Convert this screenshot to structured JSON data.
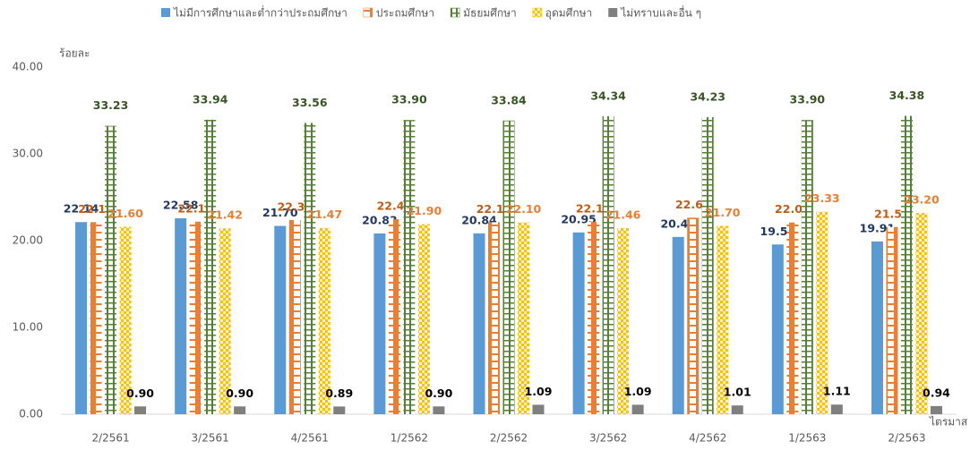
{
  "chart_data": {
    "type": "bar",
    "x_label": "ไตรมาส",
    "y_label": "ร้อยละ",
    "categories": [
      "2/2561",
      "3/2561",
      "4/2561",
      "1/2562",
      "2/2562",
      "3/2562",
      "4/2562",
      "1/2563",
      "2/2563"
    ],
    "ylim": [
      0,
      40
    ],
    "yticks": [
      {
        "value": 0,
        "label": "0.00"
      },
      {
        "value": 10,
        "label": "10.00"
      },
      {
        "value": 20,
        "label": "20.00"
      },
      {
        "value": 30,
        "label": "30.00"
      },
      {
        "value": 40,
        "label": "40.00"
      }
    ],
    "grid": false,
    "legend": "top",
    "series": [
      {
        "name": "ไม่มีการศึกษาและต่ำกว่าประถมศึกษา",
        "color": "#5b9bd5",
        "label_color": "#1f3864",
        "values": [
          22.14,
          22.58,
          21.7,
          20.83,
          20.84,
          20.95,
          20.43,
          19.56,
          19.91
        ],
        "value_labels": [
          "22.14",
          "22.58",
          "21.70",
          "20.83",
          "20.84",
          "20.95",
          "20.43",
          "19.56",
          "19.91"
        ]
      },
      {
        "name": "ประถมศึกษา",
        "color": "#ed7d31",
        "label_color": "#c55a11",
        "values": [
          22.13,
          22.19,
          22.38,
          22.47,
          22.13,
          22.16,
          22.64,
          22.09,
          21.57
        ],
        "value_labels": [
          "22.13",
          "22.19",
          "22.38",
          "22.47",
          "22.13",
          "22.16",
          "22.64",
          "22.09",
          "21.57"
        ]
      },
      {
        "name": "มัธยมศึกษา",
        "color": "#548235",
        "label_color": "#375623",
        "values": [
          33.23,
          33.94,
          33.56,
          33.9,
          33.84,
          34.34,
          34.23,
          33.9,
          34.38
        ],
        "value_labels": [
          "33.23",
          "33.94",
          "33.56",
          "33.90",
          "33.84",
          "34.34",
          "34.23",
          "33.90",
          "34.38"
        ]
      },
      {
        "name": "อุดมศึกษา",
        "color": "#ffc000",
        "label_color": "#ed7d31",
        "values": [
          21.6,
          21.42,
          21.47,
          21.9,
          22.1,
          21.46,
          21.7,
          23.33,
          23.2
        ],
        "value_labels": [
          "21.60",
          "21.42",
          "21.47",
          "21.90",
          "22.10",
          "21.46",
          "21.70",
          "23.33",
          "23.20"
        ]
      },
      {
        "name": "ไม่ทราบและอื่น ๆ",
        "color": "#7f7f7f",
        "label_color": "#000000",
        "values": [
          0.9,
          0.9,
          0.89,
          0.9,
          1.09,
          1.09,
          1.01,
          1.11,
          0.94
        ],
        "value_labels": [
          "0.90",
          "0.90",
          "0.89",
          "0.90",
          "1.09",
          "1.09",
          "1.01",
          "1.11",
          "0.94"
        ]
      }
    ]
  }
}
